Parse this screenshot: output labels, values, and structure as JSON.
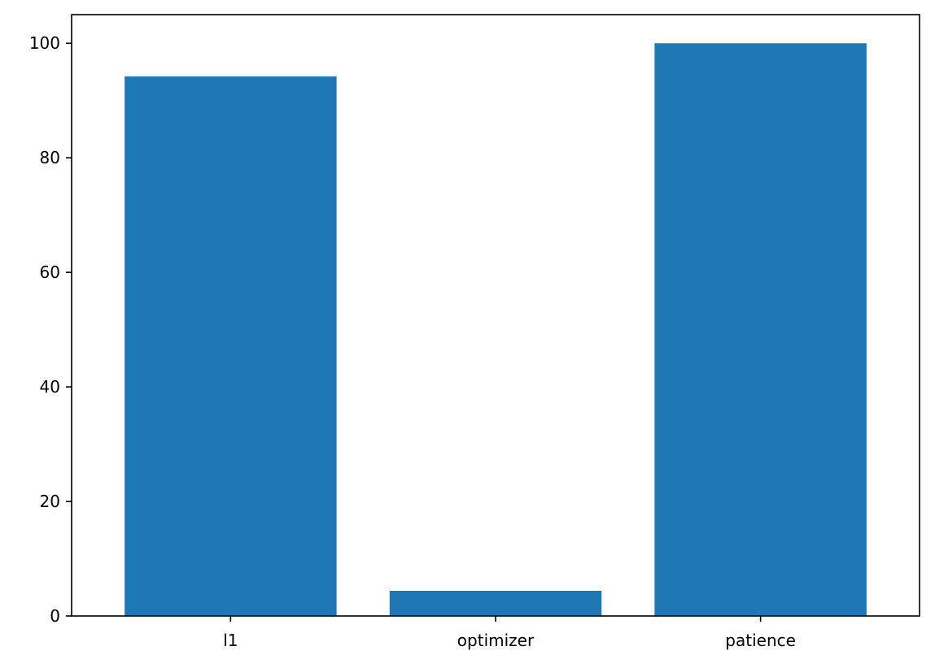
{
  "chart_data": {
    "type": "bar",
    "title": "",
    "xlabel": "",
    "ylabel": "",
    "categories": [
      "l1",
      "optimizer",
      "patience"
    ],
    "values": [
      94.2,
      4.4,
      100.0
    ],
    "ylim": [
      0,
      105
    ],
    "yticks": [
      0,
      20,
      40,
      60,
      80,
      100
    ],
    "grid": false,
    "bar_color": "#1f77b4"
  }
}
